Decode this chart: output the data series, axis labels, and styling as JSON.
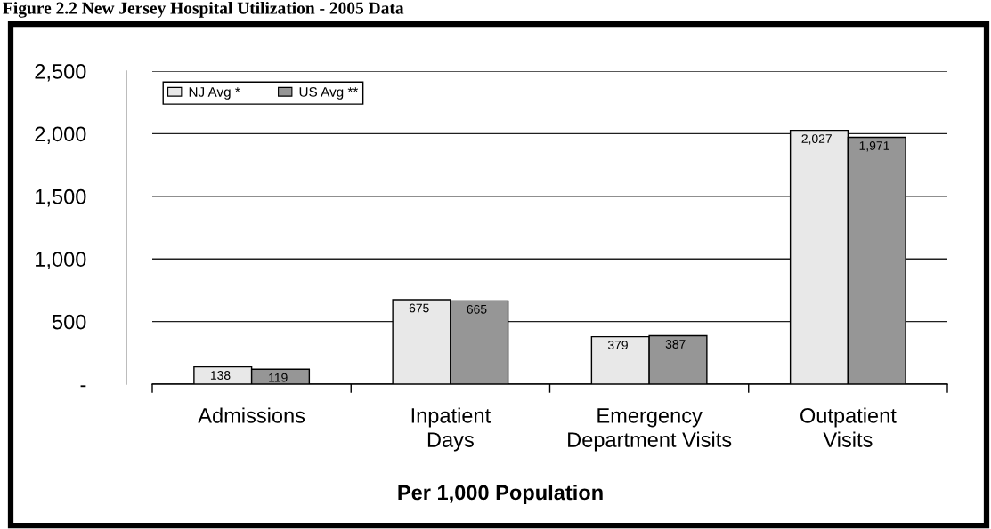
{
  "chart_data": {
    "type": "bar",
    "title": "Figure 2.2 New Jersey Hospital Utilization - 2005 Data",
    "xlabel": "Per 1,000 Population",
    "categories": [
      "Admissions",
      "Inpatient\nDays",
      "Emergency\nDepartment Visits",
      "Outpatient\nVisits"
    ],
    "series": [
      {
        "name": "NJ Avg *",
        "color": "#e8e8e8",
        "values": [
          138,
          675,
          379,
          2027
        ],
        "value_labels": [
          "138",
          "675",
          "379",
          "2,027"
        ]
      },
      {
        "name": "US Avg **",
        "color": "#969696",
        "values": [
          119,
          665,
          387,
          1971
        ],
        "value_labels": [
          "119",
          "665",
          "387",
          "1,971"
        ]
      }
    ],
    "ylim": [
      0,
      2500
    ],
    "yticks": [
      {
        "value": 0,
        "label": "-"
      },
      {
        "value": 500,
        "label": "500"
      },
      {
        "value": 1000,
        "label": "1,000"
      },
      {
        "value": 1500,
        "label": "1,500"
      },
      {
        "value": 2000,
        "label": "2,000"
      },
      {
        "value": 2500,
        "label": "2,500"
      }
    ],
    "grid": "y",
    "legend": "top left"
  }
}
